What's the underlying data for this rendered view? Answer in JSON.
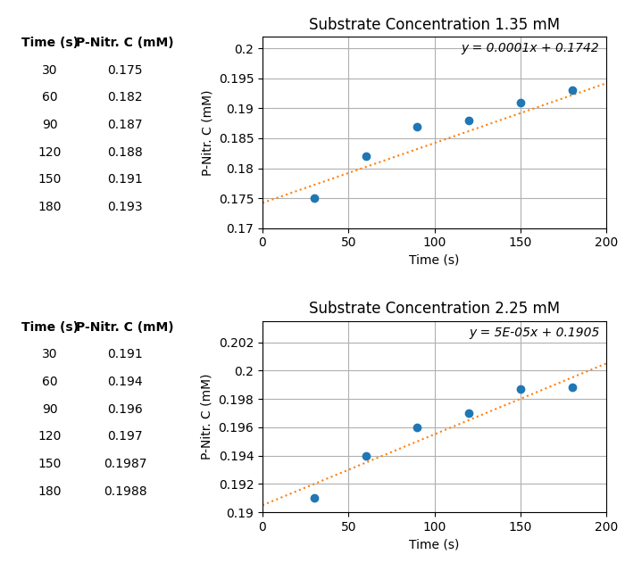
{
  "chart_data": [
    {
      "type": "scatter",
      "title": "Substrate Concentration 1.35 mM",
      "x_label": "Time (s)",
      "y_label": "P-Nitr. C (mM)",
      "annotations": [
        "y = 0.0001x + 0.1742"
      ],
      "series": [
        {
          "type": "scatter",
          "x": [
            30,
            60,
            90,
            120,
            150,
            180
          ],
          "values": [
            0.175,
            0.182,
            0.187,
            0.188,
            0.191,
            0.193
          ]
        },
        {
          "type": "line",
          "x": [
            0,
            200
          ],
          "values": [
            0.1742,
            0.1942
          ],
          "line_style": "dotted"
        }
      ],
      "xlim": [
        0,
        200
      ],
      "ylim": [
        0.17,
        0.202
      ],
      "xticks": [
        0,
        50,
        100,
        150,
        200
      ],
      "yticks": [
        0.17,
        0.175,
        0.18,
        0.185,
        0.19,
        0.195,
        0.2
      ],
      "grid": true,
      "table": {
        "columns": [
          "Time (s)",
          "P-Nitr. C (mM)"
        ],
        "rows": [
          [
            30,
            0.175
          ],
          [
            60,
            0.182
          ],
          [
            90,
            0.187
          ],
          [
            120,
            0.188
          ],
          [
            150,
            0.191
          ],
          [
            180,
            0.193
          ]
        ]
      }
    },
    {
      "type": "scatter",
      "title": "Substrate Concentration 2.25 mM",
      "x_label": "Time (s)",
      "y_label": "P-Nitr. C (mM)",
      "annotations": [
        "y = 5E-05x + 0.1905"
      ],
      "series": [
        {
          "type": "scatter",
          "x": [
            30,
            60,
            90,
            120,
            150,
            180
          ],
          "values": [
            0.191,
            0.194,
            0.196,
            0.197,
            0.1987,
            0.1988
          ]
        },
        {
          "type": "line",
          "x": [
            0,
            200
          ],
          "values": [
            0.1905,
            0.2005
          ],
          "line_style": "dotted"
        }
      ],
      "xlim": [
        0,
        200
      ],
      "ylim": [
        0.19,
        0.2035
      ],
      "xticks": [
        0,
        50,
        100,
        150,
        200
      ],
      "yticks": [
        0.19,
        0.192,
        0.194,
        0.196,
        0.198,
        0.2,
        0.202
      ],
      "grid": true,
      "table": {
        "columns": [
          "Time (s)",
          "P-Nitr. C (mM)"
        ],
        "rows": [
          [
            30,
            0.191
          ],
          [
            60,
            0.194
          ],
          [
            90,
            0.196
          ],
          [
            120,
            0.197
          ],
          [
            150,
            0.1987
          ],
          [
            180,
            0.1988
          ]
        ]
      }
    }
  ]
}
